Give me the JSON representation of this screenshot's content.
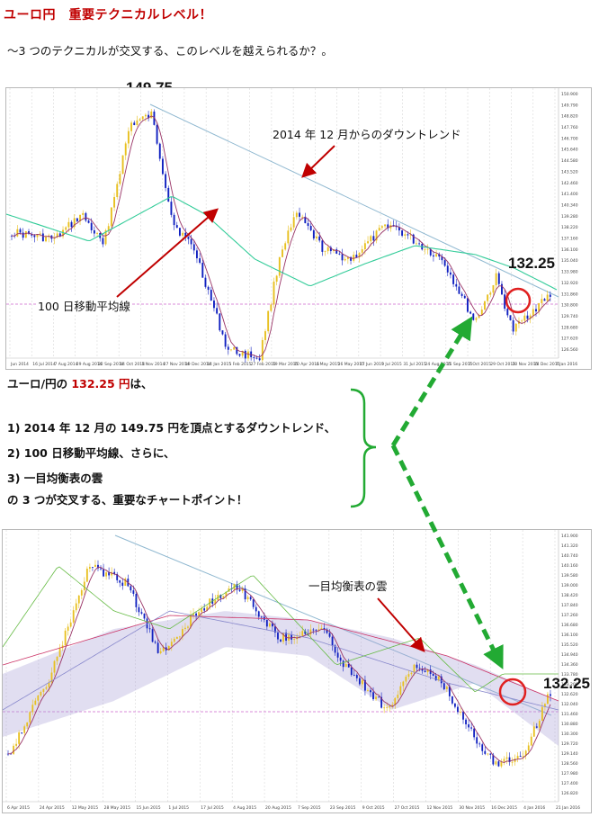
{
  "header": {
    "title": "ユーロ円　重要テクニカルレベル！",
    "subtitle": "～3 つのテクニカルが交叉する、このレベルを越えられるか？。"
  },
  "chart1": {
    "peak_label": "149.75",
    "level_label": "132.25",
    "downtrend_annotation": "2014 年 12 月からのダウントレンド",
    "ma_annotation": "100 日移動平均線",
    "x_ticks": [
      "Jun 2014",
      "16 Jul 2014",
      "7 Aug 2014",
      "29 Aug 2014",
      "22 Sep 2014",
      "14 Oct 2014",
      "5 Nov 2014",
      "27 Nov 2014",
      "19 Dec 2014",
      "14 Jan 2015",
      "5 Feb 2015",
      "27 Feb 2015",
      "19 Mar 2015",
      "10 Apr 2015",
      "4 May 2015",
      "26 May 2015",
      "17 Jun 2015",
      "9 Jul 2015",
      "31 Jul 2015",
      "24 Aug 2015",
      "15 Sep 2015",
      "7 Oct 2015",
      "29 Oct 2015",
      "20 Nov 2015",
      "14 Dec 2015",
      "7 Jan 2016"
    ],
    "y_ticks": [
      "150.900",
      "149.790",
      "148.820",
      "147.760",
      "146.700",
      "145.640",
      "144.580",
      "143.520",
      "142.460",
      "141.400",
      "140.340",
      "139.280",
      "138.220",
      "137.160",
      "136.100",
      "135.040",
      "133.980",
      "132.920",
      "131.860",
      "130.800",
      "129.740",
      "128.680",
      "127.620",
      "126.560"
    ]
  },
  "explanation": {
    "line0_prefix": "ユーロ/円の ",
    "line0_value": "132.25 円",
    "line0_suffix": "は、",
    "line1": "1)  2014 年 12 月の 149.75 円を頂点とするダウントレンド、",
    "line2": "2)  100 日移動平均線、さらに、",
    "line3": "3)   一目均衡表の雲",
    "line4": "の 3 つが交叉する、重要なチャートポイント！"
  },
  "chart2": {
    "level_label": "132.25",
    "cloud_annotation": "一目均衡表の雲",
    "x_ticks": [
      "6 Apr 2015",
      "24 Apr 2015",
      "12 May 2015",
      "28 May 2015",
      "15 Jun 2015",
      "1 Jul 2015",
      "17 Jul 2015",
      "4 Aug 2015",
      "20 Aug 2015",
      "7 Sep 2015",
      "23 Sep 2015",
      "9 Oct 2015",
      "27 Oct 2015",
      "12 Nov 2015",
      "30 Nov 2015",
      "16 Dec 2015",
      "4 Jan 2016",
      "21 Jan 2016"
    ],
    "y_ticks": [
      "141.900",
      "141.320",
      "140.740",
      "140.160",
      "139.580",
      "139.000",
      "138.420",
      "137.840",
      "137.260",
      "136.680",
      "136.100",
      "135.520",
      "134.940",
      "134.360",
      "133.780",
      "133.200",
      "132.620",
      "132.040",
      "131.460",
      "130.880",
      "130.300",
      "129.720",
      "129.140",
      "128.560",
      "127.980",
      "127.400",
      "126.820"
    ]
  },
  "colors": {
    "title": "#c00000",
    "highlight": "#c00000",
    "circle": "#e02020",
    "arrow_green": "#22aa33",
    "bracket_green": "#22aa33",
    "annotation_arrow": "#c00000",
    "ma100": "#33cc99",
    "ma_short": "#993366",
    "trendline": "#8fb8d0",
    "level_line": "#cc66cc",
    "candle_up": "#e8c020",
    "candle_down": "#1020c0",
    "cloud": "#a8a0d8"
  }
}
